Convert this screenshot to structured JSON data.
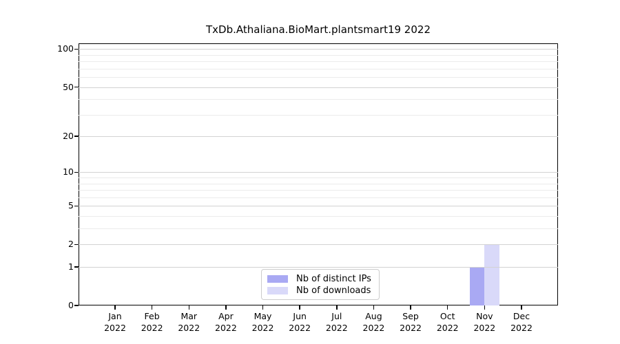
{
  "chart_data": {
    "type": "bar",
    "title": "TxDb.Athaliana.BioMart.plantsmart19 2022",
    "categories": [
      "Jan",
      "Feb",
      "Mar",
      "Apr",
      "May",
      "Jun",
      "Jul",
      "Aug",
      "Sep",
      "Oct",
      "Nov",
      "Dec"
    ],
    "year": "2022",
    "series": [
      {
        "name": "Nb of distinct IPs",
        "color": "#a9a9f3",
        "values": [
          0,
          0,
          0,
          0,
          0,
          0,
          0,
          0,
          0,
          0,
          1,
          0
        ]
      },
      {
        "name": "Nb of downloads",
        "color": "#d9d9f9",
        "values": [
          0,
          0,
          0,
          0,
          0,
          0,
          0,
          0,
          0,
          0,
          2,
          0
        ]
      }
    ],
    "yscale": "log1p",
    "yticks": [
      0,
      1,
      2,
      5,
      10,
      20,
      50,
      100
    ],
    "minor_yticks": [
      3,
      4,
      6,
      7,
      8,
      9,
      30,
      40,
      60,
      70,
      80,
      90
    ],
    "ylim": [
      0,
      111
    ],
    "xlabel": "",
    "ylabel": "",
    "grid": true,
    "legend_position": "lower-center",
    "colors": {
      "axis": "#000000",
      "grid_major": "#d2d2d2",
      "grid_minor": "#ebebeb",
      "legend_border": "#cccccc"
    }
  }
}
